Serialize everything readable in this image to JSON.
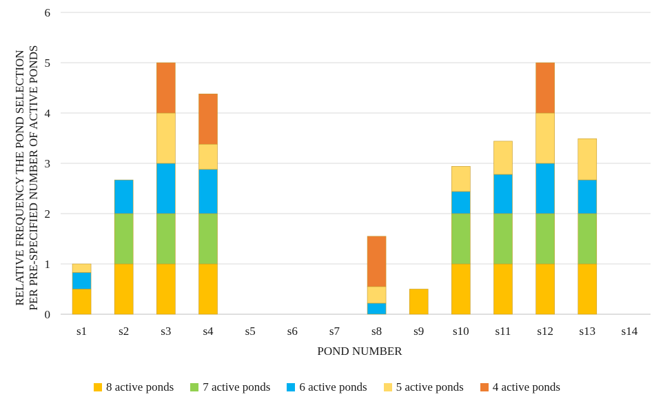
{
  "chart_data": {
    "type": "bar",
    "stacked": true,
    "categories": [
      "s1",
      "s2",
      "s3",
      "s4",
      "s5",
      "s6",
      "s7",
      "s8",
      "s9",
      "s10",
      "s11",
      "s12",
      "s13",
      "s14"
    ],
    "series": [
      {
        "name": "8 active ponds",
        "color": "#ffc000",
        "values": [
          0.5,
          1,
          1,
          1,
          0,
          0,
          0,
          0,
          0.5,
          1,
          1,
          1,
          1,
          0
        ]
      },
      {
        "name": "7 active ponds",
        "color": "#92d050",
        "values": [
          0,
          1,
          1,
          1,
          0,
          0,
          0,
          0,
          0,
          1,
          1,
          1,
          1,
          0
        ]
      },
      {
        "name": "6 active ponds",
        "color": "#00b0f0",
        "values": [
          0.33,
          0.67,
          1,
          0.88,
          0,
          0,
          0,
          0.22,
          0,
          0.44,
          0.78,
          1,
          0.67,
          0
        ]
      },
      {
        "name": "5 active ponds",
        "color": "#ffd966",
        "values": [
          0.17,
          0,
          1,
          0.5,
          0,
          0,
          0,
          0.33,
          0,
          0.5,
          0.66,
          1,
          0.82,
          0
        ]
      },
      {
        "name": "4 active ponds",
        "color": "#ed7d31",
        "values": [
          0,
          0,
          1,
          1,
          0,
          0,
          0,
          1,
          0,
          0,
          0,
          1,
          0,
          0
        ]
      }
    ],
    "xlabel": "POND NUMBER",
    "ylabel_lines": [
      "RELATIVE FREQUENCY THE POND SELECTION",
      "PER PRE-SPECIFIED NUMBER OF ACTIVE PONDS"
    ],
    "ylim": [
      0,
      6
    ],
    "yticks": [
      "0",
      "1",
      "2",
      "3",
      "4",
      "5",
      "6"
    ],
    "grid": true,
    "legend_position": "bottom"
  }
}
